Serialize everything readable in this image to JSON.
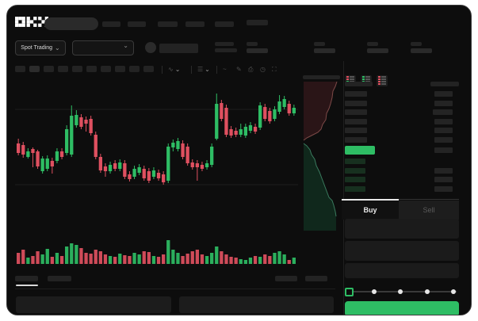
{
  "app": {
    "name": "OKX Spot Trading"
  },
  "header": {
    "logo_text": "OKX"
  },
  "subheader": {
    "market_selector_label": "Spot Trading"
  },
  "icons": {
    "chevron_down": "⌄",
    "indicators": "∿",
    "candle_type": "☰",
    "line_style": "~",
    "draw": "✎",
    "camera": "⎙",
    "timer": "◷",
    "fullscreen": "⛶"
  },
  "colors": {
    "green": "#2ebd64",
    "red": "#df5060",
    "grid": "#1d1d1d",
    "ask_fill": "#2a1517",
    "bid_fill": "#10281c",
    "ask_line": "#7d4a48",
    "bid_line": "#3a7a5e"
  },
  "chart_data": {
    "type": "candlestick",
    "note": "pixel-space candles [bodyTop,bodyBottom,wickTop,wickBottom,dir] in 357x195 area; volumes px heights",
    "gridlines_y": [
      37,
      132
    ],
    "candles": [
      [
        80,
        92,
        74,
        95,
        "r"
      ],
      [
        82,
        94,
        78,
        98,
        "r"
      ],
      [
        90,
        97,
        86,
        99,
        "g"
      ],
      [
        87,
        92,
        85,
        110,
        "r"
      ],
      [
        90,
        109,
        88,
        112,
        "r"
      ],
      [
        99,
        115,
        96,
        118,
        "g"
      ],
      [
        99,
        112,
        95,
        115,
        "g"
      ],
      [
        102,
        109,
        98,
        118,
        "r"
      ],
      [
        90,
        102,
        86,
        105,
        "g"
      ],
      [
        90,
        97,
        86,
        100,
        "r"
      ],
      [
        62,
        92,
        57,
        95,
        "g"
      ],
      [
        45,
        94,
        32,
        97,
        "g"
      ],
      [
        44,
        57,
        38,
        60,
        "g"
      ],
      [
        47,
        59,
        43,
        62,
        "r"
      ],
      [
        50,
        55,
        46,
        65,
        "r"
      ],
      [
        49,
        67,
        45,
        70,
        "r"
      ],
      [
        69,
        97,
        65,
        100,
        "r"
      ],
      [
        97,
        114,
        93,
        117,
        "r"
      ],
      [
        109,
        115,
        105,
        122,
        "r"
      ],
      [
        107,
        115,
        103,
        118,
        "g"
      ],
      [
        105,
        112,
        101,
        115,
        "r"
      ],
      [
        104,
        112,
        100,
        115,
        "g"
      ],
      [
        105,
        122,
        101,
        125,
        "r"
      ],
      [
        119,
        125,
        115,
        128,
        "r"
      ],
      [
        112,
        122,
        108,
        125,
        "g"
      ],
      [
        110,
        117,
        106,
        120,
        "g"
      ],
      [
        112,
        124,
        108,
        127,
        "r"
      ],
      [
        115,
        127,
        111,
        130,
        "r"
      ],
      [
        114,
        122,
        110,
        125,
        "g"
      ],
      [
        117,
        124,
        113,
        127,
        "r"
      ],
      [
        119,
        129,
        115,
        132,
        "r"
      ],
      [
        84,
        127,
        80,
        130,
        "g"
      ],
      [
        79,
        85,
        75,
        90,
        "g"
      ],
      [
        77,
        87,
        73,
        90,
        "g"
      ],
      [
        80,
        97,
        76,
        100,
        "r"
      ],
      [
        84,
        105,
        80,
        108,
        "r"
      ],
      [
        104,
        110,
        100,
        113,
        "r"
      ],
      [
        105,
        110,
        101,
        127,
        "r"
      ],
      [
        107,
        112,
        103,
        115,
        "r"
      ],
      [
        105,
        110,
        101,
        113,
        "g"
      ],
      [
        84,
        107,
        80,
        110,
        "g"
      ],
      [
        30,
        74,
        17,
        76,
        "g"
      ],
      [
        29,
        49,
        25,
        52,
        "r"
      ],
      [
        35,
        69,
        31,
        72,
        "r"
      ],
      [
        62,
        70,
        58,
        73,
        "r"
      ],
      [
        64,
        69,
        60,
        72,
        "r"
      ],
      [
        62,
        69,
        55,
        72,
        "g"
      ],
      [
        59,
        70,
        55,
        73,
        "g"
      ],
      [
        57,
        64,
        53,
        67,
        "g"
      ],
      [
        59,
        65,
        55,
        68,
        "r"
      ],
      [
        32,
        60,
        28,
        63,
        "g"
      ],
      [
        34,
        49,
        30,
        52,
        "r"
      ],
      [
        39,
        52,
        35,
        55,
        "r"
      ],
      [
        37,
        49,
        33,
        52,
        "g"
      ],
      [
        27,
        40,
        19,
        43,
        "g"
      ],
      [
        24,
        34,
        20,
        37,
        "g"
      ],
      [
        30,
        42,
        26,
        45,
        "r"
      ],
      [
        35,
        42,
        31,
        45,
        "g"
      ]
    ],
    "volumes": [
      14,
      18,
      8,
      10,
      16,
      12,
      19,
      9,
      14,
      10,
      22,
      26,
      24,
      20,
      14,
      13,
      18,
      16,
      12,
      10,
      9,
      13,
      11,
      10,
      14,
      12,
      16,
      15,
      10,
      9,
      12,
      30,
      18,
      14,
      10,
      13,
      16,
      18,
      12,
      10,
      14,
      22,
      16,
      12,
      9,
      8,
      6,
      5,
      8,
      10,
      9,
      12,
      10,
      14,
      16,
      12,
      5,
      8
    ]
  },
  "depth": {
    "asks_line": "46,2 44,8 41,14 40,22 38,30 36,36 33,42 32,50 28,56 26,62 22,66 14,70 8,73 4,76",
    "asks_fill": "46,2 44,8 41,14 40,22 38,30 36,36 33,42 32,50 28,56 26,62 22,66 14,70 8,73 4,76 4,2",
    "bids_line": "4,80 8,83 12,88 14,94 18,100 20,108 24,116 27,124 30,132 33,140 36,148 40,152 42,158 44,166 45,172",
    "bids_fill": "4,80 8,83 12,88 14,94 18,100 20,108 24,116 27,124 30,132 33,140 36,148 40,152 42,158 44,166 45,172 45,190 4,190"
  },
  "orderbook": {
    "toggles": [
      {
        "name": "book-combined-icon",
        "pattern": [
          "red",
          "red",
          "green",
          "green"
        ]
      },
      {
        "name": "book-bids-icon",
        "pattern": [
          "green",
          "green",
          "green",
          "green"
        ]
      },
      {
        "name": "book-asks-icon",
        "pattern": [
          "red",
          "red",
          "red",
          "red"
        ]
      }
    ],
    "header_bars": {
      "left_w": 35,
      "right_w": 36
    },
    "asks": [
      [
        28,
        23
      ],
      [
        28,
        23
      ],
      [
        28,
        25
      ],
      [
        28,
        23
      ],
      [
        28,
        23
      ],
      [
        28,
        23
      ]
    ],
    "price_bar_w": 38,
    "price_row_right_w": 23,
    "bids": [
      [
        26,
        0
      ],
      [
        26,
        23
      ],
      [
        26,
        23
      ],
      [
        26,
        23
      ]
    ]
  },
  "trade": {
    "buy_label": "Buy",
    "sell_label": "Sell",
    "slider": {
      "dots": 5,
      "active_index": 0
    }
  }
}
